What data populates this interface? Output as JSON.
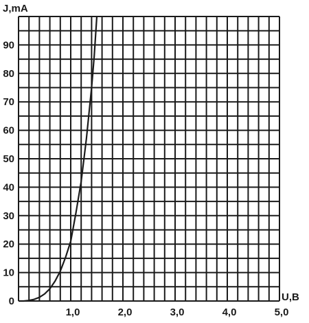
{
  "chart_data": {
    "type": "line",
    "title": "",
    "xlabel": "U,B",
    "ylabel": "J,mA",
    "xlim": [
      0,
      5.0
    ],
    "ylim": [
      0,
      100
    ],
    "grid": true,
    "x_tick_labels": [
      "1,0",
      "2,0",
      "3,0",
      "4,0",
      "5,0"
    ],
    "y_tick_labels": [
      "0",
      "10",
      "20",
      "30",
      "40",
      "50",
      "60",
      "70",
      "80",
      "90"
    ],
    "series": [
      {
        "x": [
          0.0,
          0.1,
          0.2,
          0.3,
          0.4,
          0.5,
          0.6,
          0.7,
          0.8,
          0.9,
          1.0,
          1.1,
          1.2,
          1.3,
          1.4,
          1.45,
          1.5
        ],
        "y": [
          0.0,
          0.0,
          0.2,
          0.6,
          1.3,
          2.5,
          4.3,
          7.0,
          10.5,
          15.3,
          21.0,
          31.0,
          42.0,
          57.0,
          75.0,
          86.0,
          100.0
        ]
      }
    ]
  }
}
